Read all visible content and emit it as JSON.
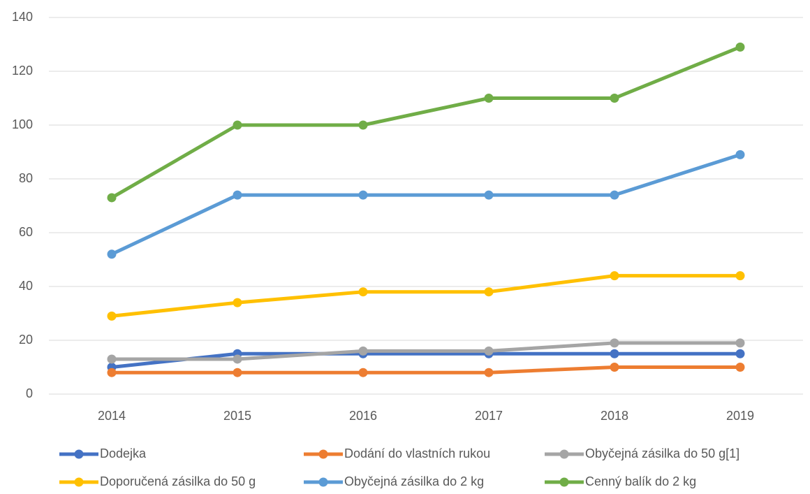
{
  "chart_data": {
    "type": "line",
    "categories": [
      "2014",
      "2015",
      "2016",
      "2017",
      "2018",
      "2019"
    ],
    "series": [
      {
        "name": "Dodejka",
        "color": "#4472c4",
        "values": [
          10,
          15,
          15,
          15,
          15,
          15
        ]
      },
      {
        "name": "Dodání do vlastních rukou",
        "color": "#ed7d31",
        "values": [
          8,
          8,
          8,
          8,
          10,
          10
        ]
      },
      {
        "name": "Obyčejná zásilka do 50 g[1]",
        "color": "#a5a5a5",
        "values": [
          13,
          13,
          16,
          16,
          19,
          19
        ]
      },
      {
        "name": "Doporučená zásilka do 50 g",
        "color": "#ffc000",
        "values": [
          29,
          34,
          38,
          38,
          44,
          44
        ]
      },
      {
        "name": "Obyčejná zásilka do 2 kg",
        "color": "#5b9bd5",
        "values": [
          52,
          74,
          74,
          74,
          74,
          89
        ]
      },
      {
        "name": "Cenný balík do 2 kg",
        "color": "#70ad47",
        "values": [
          73,
          100,
          100,
          110,
          110,
          129
        ]
      }
    ],
    "ylim": [
      0,
      140
    ],
    "yticks": [
      0,
      20,
      40,
      60,
      80,
      100,
      120,
      140
    ],
    "grid": true,
    "legend": "bottom"
  }
}
